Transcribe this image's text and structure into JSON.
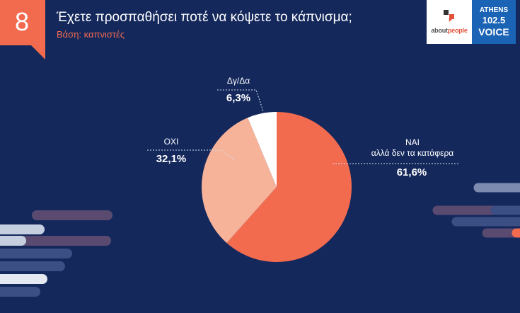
{
  "header": {
    "question_number": "8",
    "title": "Έχετε προσπαθήσει ποτέ να κόψετε το κάπνισμα;",
    "subtitle": "Βάση: καπνιστές"
  },
  "logos": {
    "about_prefix": "about",
    "about_suffix": "people",
    "athens_line1": "ATHENS",
    "athens_line2": "102.5",
    "athens_line3": "VOICE"
  },
  "colors": {
    "background": "#14285c",
    "accent": "#f36b4f",
    "slice_yes": "#f36b4f",
    "slice_no": "#f7b29a",
    "slice_dk": "#ffffff"
  },
  "chart_data": {
    "type": "pie",
    "title": "Έχετε προσπαθήσει ποτέ να κόψετε το κάπνισμα;",
    "subtitle": "Βάση: καπνιστές",
    "slices": [
      {
        "label": "ΝΑΙ αλλά δεν τα κατάφερα",
        "label_line1": "ΝΑΙ",
        "label_line2": "αλλά δεν τα κατάφερα",
        "value": 61.6,
        "display": "61,6%",
        "color": "#f36b4f"
      },
      {
        "label": "ΟΧΙ",
        "value": 32.1,
        "display": "32,1%",
        "color": "#f7b29a"
      },
      {
        "label": "Δγ/Δα",
        "value": 6.3,
        "display": "6,3%",
        "color": "#ffffff"
      }
    ]
  }
}
